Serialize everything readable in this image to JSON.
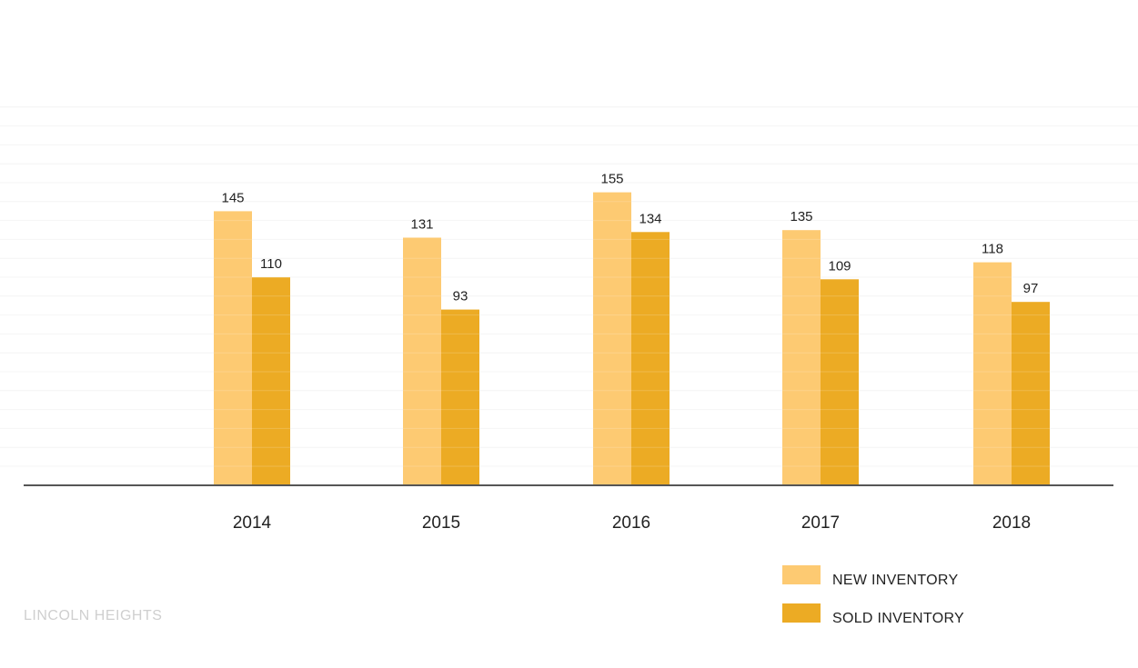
{
  "footer": {
    "neighborhood": "LINCOLN HEIGHTS"
  },
  "colors": {
    "new": "#fdca72",
    "sold": "#ecab24",
    "axis": "#555555",
    "grid": "#f4f4f4",
    "text": "#222222"
  },
  "chart_data": {
    "type": "bar",
    "title": "",
    "xlabel": "",
    "ylabel": "",
    "categories": [
      "2014",
      "2015",
      "2016",
      "2017",
      "2018"
    ],
    "series": [
      {
        "name": "NEW INVENTORY",
        "values": [
          145,
          131,
          155,
          135,
          118
        ]
      },
      {
        "name": "SOLD INVENTORY",
        "values": [
          110,
          93,
          134,
          109,
          97
        ]
      }
    ],
    "ylim": [
      0,
      200
    ],
    "grid": true,
    "legend": "bottom-right",
    "data_labels": true
  }
}
